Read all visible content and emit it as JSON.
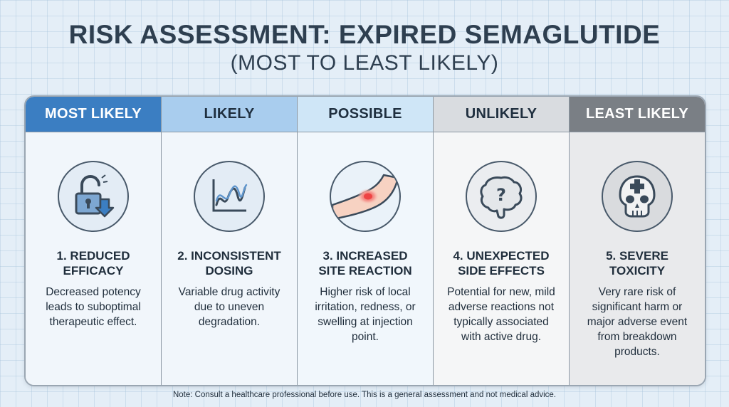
{
  "title": "RISK ASSESSMENT: EXPIRED SEMAGLUTIDE",
  "subtitle": "(MOST TO LEAST LIKELY)",
  "colors": {
    "most_likely": "#3b7ec2",
    "likely": "#a9cdee",
    "possible": "#cfe6f7",
    "unlikely": "#d9dce0",
    "least_likely": "#7a7f85"
  },
  "columns": [
    {
      "header": "MOST LIKELY",
      "icon": "unlocked-padlock-down-arrow-icon",
      "title_line1": "1. REDUCED",
      "title_line2": "EFFICACY",
      "description": "Decreased potency leads to suboptimal therapeutic effect."
    },
    {
      "header": "LIKELY",
      "icon": "wavy-graph-icon",
      "title_line1": "2. INCONSISTENT",
      "title_line2": "DOSING",
      "description": "Variable drug activity due to uneven degradation."
    },
    {
      "header": "POSSIBLE",
      "icon": "red-injection-site-skin-icon",
      "title_line1": "3. INCREASED",
      "title_line2": "SITE REACTION",
      "description": "Higher risk of local irritation, redness, or swelling at injection point."
    },
    {
      "header": "UNLIKELY",
      "icon": "brain-question-mark-icon",
      "title_line1": "4. UNEXPECTED",
      "title_line2": "SIDE EFFECTS",
      "description": "Potential for new, mild adverse reactions not typically associated with active drug."
    },
    {
      "header": "LEAST LIKELY",
      "icon": "skull-with-cross-icon",
      "title_line1": "5. SEVERE",
      "title_line2": "TOXICITY",
      "description": "Very rare risk of significant harm or major adverse event from breakdown products."
    }
  ],
  "note": "Note: Consult a healthcare professional before use. This is a general assessment and not medical advice."
}
